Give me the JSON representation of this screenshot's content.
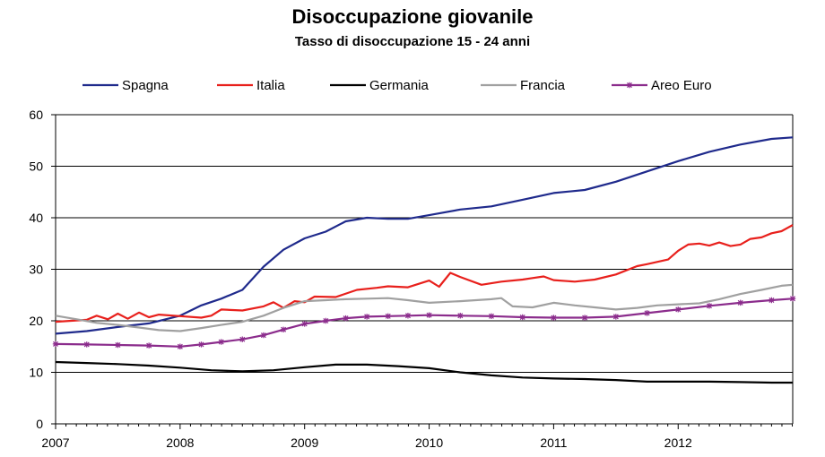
{
  "chart_data": {
    "type": "line",
    "title": "Disoccupazione giovanile",
    "subtitle": "Tasso di disoccupazione 15 - 24 anni",
    "xlabel": "",
    "ylabel": "",
    "ylim": [
      0,
      60
    ],
    "y_ticks": [
      "0",
      "10",
      "20",
      "30",
      "40",
      "50",
      "60"
    ],
    "x_ticks": [
      "2007",
      "2008",
      "2009",
      "2010",
      "2011",
      "2012"
    ],
    "xlim": [
      2007.0,
      2012.92
    ],
    "grid": "horizontal",
    "legend_position": "top",
    "series": [
      {
        "name": "Spagna",
        "color": "#1f2a8c",
        "marker": "none",
        "points": [
          [
            2007.0,
            17.5
          ],
          [
            2007.25,
            18.0
          ],
          [
            2007.5,
            18.8
          ],
          [
            2007.75,
            19.5
          ],
          [
            2008.0,
            21.0
          ],
          [
            2008.17,
            23.0
          ],
          [
            2008.33,
            24.3
          ],
          [
            2008.5,
            26.0
          ],
          [
            2008.67,
            30.5
          ],
          [
            2008.83,
            33.8
          ],
          [
            2009.0,
            36.0
          ],
          [
            2009.17,
            37.3
          ],
          [
            2009.33,
            39.3
          ],
          [
            2009.5,
            40.0
          ],
          [
            2009.67,
            39.8
          ],
          [
            2009.83,
            39.8
          ],
          [
            2010.0,
            40.5
          ],
          [
            2010.25,
            41.6
          ],
          [
            2010.5,
            42.2
          ],
          [
            2010.75,
            43.5
          ],
          [
            2011.0,
            44.8
          ],
          [
            2011.25,
            45.4
          ],
          [
            2011.5,
            47.0
          ],
          [
            2011.75,
            49.0
          ],
          [
            2012.0,
            51.0
          ],
          [
            2012.25,
            52.8
          ],
          [
            2012.5,
            54.2
          ],
          [
            2012.75,
            55.3
          ],
          [
            2012.92,
            55.6
          ]
        ]
      },
      {
        "name": "Italia",
        "color": "#e8201c",
        "marker": "none",
        "points": [
          [
            2007.0,
            19.8
          ],
          [
            2007.25,
            20.2
          ],
          [
            2007.33,
            21.0
          ],
          [
            2007.42,
            20.3
          ],
          [
            2007.5,
            21.4
          ],
          [
            2007.58,
            20.4
          ],
          [
            2007.67,
            21.6
          ],
          [
            2007.75,
            20.7
          ],
          [
            2007.83,
            21.2
          ],
          [
            2008.0,
            20.9
          ],
          [
            2008.17,
            20.6
          ],
          [
            2008.25,
            21.0
          ],
          [
            2008.33,
            22.2
          ],
          [
            2008.5,
            22.0
          ],
          [
            2008.67,
            22.8
          ],
          [
            2008.75,
            23.6
          ],
          [
            2008.83,
            22.5
          ],
          [
            2008.92,
            23.8
          ],
          [
            2009.0,
            23.6
          ],
          [
            2009.08,
            24.7
          ],
          [
            2009.25,
            24.6
          ],
          [
            2009.42,
            26.0
          ],
          [
            2009.58,
            26.4
          ],
          [
            2009.67,
            26.7
          ],
          [
            2009.83,
            26.5
          ],
          [
            2010.0,
            27.8
          ],
          [
            2010.08,
            26.6
          ],
          [
            2010.17,
            29.3
          ],
          [
            2010.25,
            28.5
          ],
          [
            2010.42,
            27.0
          ],
          [
            2010.58,
            27.6
          ],
          [
            2010.75,
            28.0
          ],
          [
            2010.83,
            28.3
          ],
          [
            2010.92,
            28.6
          ],
          [
            2011.0,
            27.9
          ],
          [
            2011.17,
            27.6
          ],
          [
            2011.33,
            28.0
          ],
          [
            2011.5,
            29.0
          ],
          [
            2011.67,
            30.6
          ],
          [
            2011.75,
            31.0
          ],
          [
            2011.92,
            31.9
          ],
          [
            2012.0,
            33.6
          ],
          [
            2012.08,
            34.8
          ],
          [
            2012.17,
            35.0
          ],
          [
            2012.25,
            34.6
          ],
          [
            2012.33,
            35.2
          ],
          [
            2012.42,
            34.5
          ],
          [
            2012.5,
            34.8
          ],
          [
            2012.58,
            35.9
          ],
          [
            2012.67,
            36.2
          ],
          [
            2012.75,
            37.0
          ],
          [
            2012.83,
            37.4
          ],
          [
            2012.92,
            38.6
          ]
        ]
      },
      {
        "name": "Germania",
        "color": "#000000",
        "marker": "none",
        "points": [
          [
            2007.0,
            12.0
          ],
          [
            2007.25,
            11.8
          ],
          [
            2007.5,
            11.6
          ],
          [
            2007.75,
            11.3
          ],
          [
            2008.0,
            10.9
          ],
          [
            2008.25,
            10.4
          ],
          [
            2008.5,
            10.2
          ],
          [
            2008.75,
            10.4
          ],
          [
            2009.0,
            11.0
          ],
          [
            2009.25,
            11.5
          ],
          [
            2009.5,
            11.5
          ],
          [
            2009.75,
            11.2
          ],
          [
            2010.0,
            10.8
          ],
          [
            2010.25,
            10.0
          ],
          [
            2010.5,
            9.4
          ],
          [
            2010.75,
            9.0
          ],
          [
            2011.0,
            8.8
          ],
          [
            2011.25,
            8.7
          ],
          [
            2011.5,
            8.5
          ],
          [
            2011.75,
            8.2
          ],
          [
            2012.0,
            8.2
          ],
          [
            2012.25,
            8.2
          ],
          [
            2012.5,
            8.1
          ],
          [
            2012.75,
            8.0
          ],
          [
            2012.92,
            8.0
          ]
        ]
      },
      {
        "name": "Francia",
        "color": "#a0a0a0",
        "marker": "none",
        "points": [
          [
            2007.0,
            21.0
          ],
          [
            2007.17,
            20.3
          ],
          [
            2007.33,
            19.6
          ],
          [
            2007.5,
            19.2
          ],
          [
            2007.67,
            18.7
          ],
          [
            2007.83,
            18.2
          ],
          [
            2008.0,
            18.0
          ],
          [
            2008.17,
            18.6
          ],
          [
            2008.33,
            19.2
          ],
          [
            2008.5,
            19.8
          ],
          [
            2008.67,
            21.0
          ],
          [
            2008.83,
            22.5
          ],
          [
            2009.0,
            23.8
          ],
          [
            2009.17,
            24.0
          ],
          [
            2009.33,
            24.2
          ],
          [
            2009.5,
            24.3
          ],
          [
            2009.67,
            24.4
          ],
          [
            2009.83,
            24.0
          ],
          [
            2010.0,
            23.5
          ],
          [
            2010.25,
            23.8
          ],
          [
            2010.5,
            24.2
          ],
          [
            2010.58,
            24.4
          ],
          [
            2010.67,
            22.8
          ],
          [
            2010.83,
            22.6
          ],
          [
            2011.0,
            23.5
          ],
          [
            2011.17,
            23.0
          ],
          [
            2011.33,
            22.6
          ],
          [
            2011.5,
            22.2
          ],
          [
            2011.67,
            22.5
          ],
          [
            2011.83,
            23.0
          ],
          [
            2012.0,
            23.2
          ],
          [
            2012.17,
            23.4
          ],
          [
            2012.33,
            24.2
          ],
          [
            2012.5,
            25.2
          ],
          [
            2012.67,
            26.0
          ],
          [
            2012.83,
            26.8
          ],
          [
            2012.92,
            27.0
          ]
        ]
      },
      {
        "name": "Areo Euro",
        "color": "#8b2c8c",
        "marker": "star",
        "points": [
          [
            2007.0,
            15.5
          ],
          [
            2007.25,
            15.4
          ],
          [
            2007.5,
            15.3
          ],
          [
            2007.75,
            15.2
          ],
          [
            2008.0,
            15.0
          ],
          [
            2008.17,
            15.4
          ],
          [
            2008.33,
            15.9
          ],
          [
            2008.5,
            16.4
          ],
          [
            2008.67,
            17.2
          ],
          [
            2008.83,
            18.3
          ],
          [
            2009.0,
            19.4
          ],
          [
            2009.17,
            20.0
          ],
          [
            2009.33,
            20.5
          ],
          [
            2009.5,
            20.8
          ],
          [
            2009.67,
            20.9
          ],
          [
            2009.83,
            21.0
          ],
          [
            2010.0,
            21.1
          ],
          [
            2010.25,
            21.0
          ],
          [
            2010.5,
            20.9
          ],
          [
            2010.75,
            20.7
          ],
          [
            2011.0,
            20.6
          ],
          [
            2011.25,
            20.6
          ],
          [
            2011.5,
            20.8
          ],
          [
            2011.75,
            21.5
          ],
          [
            2012.0,
            22.2
          ],
          [
            2012.25,
            22.9
          ],
          [
            2012.5,
            23.5
          ],
          [
            2012.75,
            24.0
          ],
          [
            2012.92,
            24.3
          ]
        ]
      }
    ]
  }
}
